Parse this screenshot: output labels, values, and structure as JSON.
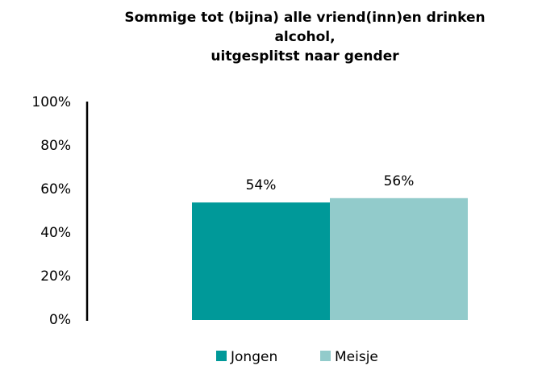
{
  "chart_data": {
    "type": "bar",
    "title": [
      "Sommige tot (bijna) alle vriend(inn)en drinken",
      "alcohol,",
      "uitgesplitst naar gender"
    ],
    "categories": [
      null
    ],
    "series": [
      {
        "name": "Jongen",
        "color": "#009999",
        "values": [
          54
        ],
        "value_labels": [
          "54%"
        ]
      },
      {
        "name": "Meisje",
        "color": "#92cbcb",
        "values": [
          56
        ],
        "value_labels": [
          "56%"
        ]
      }
    ],
    "ylim": [
      0,
      100
    ],
    "yticks": [
      {
        "value": 0,
        "label": "0%"
      },
      {
        "value": 20,
        "label": "20%"
      },
      {
        "value": 40,
        "label": "40%"
      },
      {
        "value": 60,
        "label": "60%"
      },
      {
        "value": 80,
        "label": "80%"
      },
      {
        "value": 100,
        "label": "100%"
      }
    ],
    "grid": false,
    "legend": "bottom"
  }
}
